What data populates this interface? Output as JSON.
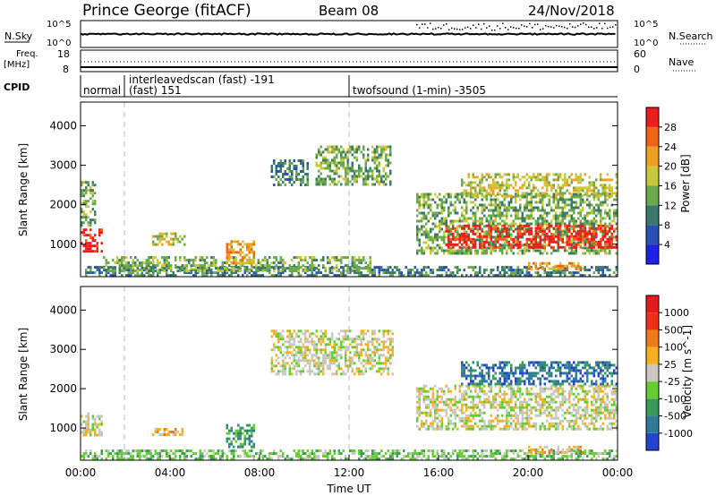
{
  "header": {
    "station": "Prince George (fitACF)",
    "beam": "Beam 08",
    "date": "24/Nov/2018"
  },
  "noise_panel": {
    "left_label": "N.Sky",
    "left_ticks": [
      "10^5",
      "10^0"
    ],
    "right_ticks": [
      "10^5",
      "10^0"
    ],
    "right_label": "N.Search"
  },
  "freq_panel": {
    "left_label_1": "Freq.",
    "left_label_2": "[MHz]",
    "left_ticks": [
      "18",
      "8"
    ],
    "right_ticks": [
      "60",
      "0"
    ],
    "right_label": "Nave"
  },
  "cpid": {
    "label": "CPID",
    "segments": [
      {
        "name": "normal",
        "start_h": 0.0
      },
      {
        "name": "interleavedscan (fast) -191",
        "name2": "(fast) 151",
        "start_h": 1.85
      },
      {
        "name": "twofsound (1-min) -3505",
        "start_h": 12.0
      }
    ]
  },
  "axes": {
    "ylabel": "Slant Range [km]",
    "yticks": [
      "1000",
      "2000",
      "3000",
      "4000"
    ],
    "xticks": [
      "00:00",
      "04:00",
      "08:00",
      "12:00",
      "16:00",
      "20:00",
      "00:00"
    ],
    "xlabel": "Time UT",
    "x_range_hours": [
      0,
      24
    ],
    "y_range_km": [
      180,
      4600
    ]
  },
  "power_colorbar": {
    "label": "Power [dB]",
    "ticks": [
      "4",
      "8",
      "12",
      "16",
      "20",
      "24",
      "28"
    ],
    "colors": [
      "#1f1fe6",
      "#2a4fb5",
      "#3a7a6a",
      "#6aaa4a",
      "#c8c83a",
      "#f0a020",
      "#f06418",
      "#ee1c1c"
    ]
  },
  "velocity_colorbar": {
    "label": "Velocity [m s^-1]",
    "ticks": [
      "1000",
      "500",
      "100",
      "25",
      "-25",
      "-100",
      "-500",
      "-1000"
    ],
    "colors": [
      "#2244cc",
      "#2f7a9a",
      "#3a9a5a",
      "#66cc33",
      "#c8c8c0",
      "#f5b020",
      "#f07a18",
      "#ee3018",
      "#e51a1a"
    ]
  },
  "chart_data": {
    "type": "heatmap",
    "title": "Prince George (fitACF)",
    "xlabel": "Time UT",
    "ylabel": "Slant Range [km]",
    "xlim_hours": [
      0,
      24
    ],
    "ylim_km": [
      180,
      4600
    ],
    "power_regions": [
      {
        "t0": 0.0,
        "t1": 1.0,
        "r0": 850,
        "r1": 1400,
        "level": 7
      },
      {
        "t0": 0.0,
        "t1": 0.7,
        "r0": 1450,
        "r1": 2600,
        "level": 3
      },
      {
        "t0": 0.0,
        "t1": 24.0,
        "r0": 200,
        "r1": 450,
        "level": 2
      },
      {
        "t0": 1.0,
        "t1": 13.0,
        "r0": 300,
        "r1": 700,
        "level": 3
      },
      {
        "t0": 3.2,
        "t1": 4.7,
        "r0": 1000,
        "r1": 1300,
        "level": 4
      },
      {
        "t0": 6.5,
        "t1": 7.8,
        "r0": 500,
        "r1": 1100,
        "level": 5
      },
      {
        "t0": 8.5,
        "t1": 10.2,
        "r0": 2500,
        "r1": 3150,
        "level": 2
      },
      {
        "t0": 10.5,
        "t1": 13.8,
        "r0": 2500,
        "r1": 3500,
        "level": 3
      },
      {
        "t0": 15.0,
        "t1": 24.0,
        "r0": 800,
        "r1": 2300,
        "level": 3
      },
      {
        "t0": 16.3,
        "t1": 24.0,
        "r0": 950,
        "r1": 1500,
        "level": 7
      },
      {
        "t0": 17.0,
        "t1": 24.0,
        "r0": 2200,
        "r1": 2800,
        "level": 4
      },
      {
        "t0": 20.0,
        "t1": 22.5,
        "r0": 350,
        "r1": 550,
        "level": 5
      }
    ],
    "velocity_regions": [
      {
        "t0": 0.0,
        "t1": 1.0,
        "r0": 850,
        "r1": 1400,
        "level": 4
      },
      {
        "t0": 0.0,
        "t1": 24.0,
        "r0": 200,
        "r1": 450,
        "level": 3
      },
      {
        "t0": 3.2,
        "t1": 4.7,
        "r0": 800,
        "r1": 1000,
        "level": 5
      },
      {
        "t0": 6.5,
        "t1": 7.8,
        "r0": 500,
        "r1": 1100,
        "level": 2
      },
      {
        "t0": 8.5,
        "t1": 14.0,
        "r0": 2400,
        "r1": 3500,
        "level": 4
      },
      {
        "t0": 15.0,
        "t1": 24.0,
        "r0": 950,
        "r1": 2100,
        "level": 4
      },
      {
        "t0": 17.0,
        "t1": 24.0,
        "r0": 2100,
        "r1": 2700,
        "level": 1
      },
      {
        "t0": 20.0,
        "t1": 22.5,
        "r0": 350,
        "r1": 550,
        "level": 5
      }
    ]
  }
}
